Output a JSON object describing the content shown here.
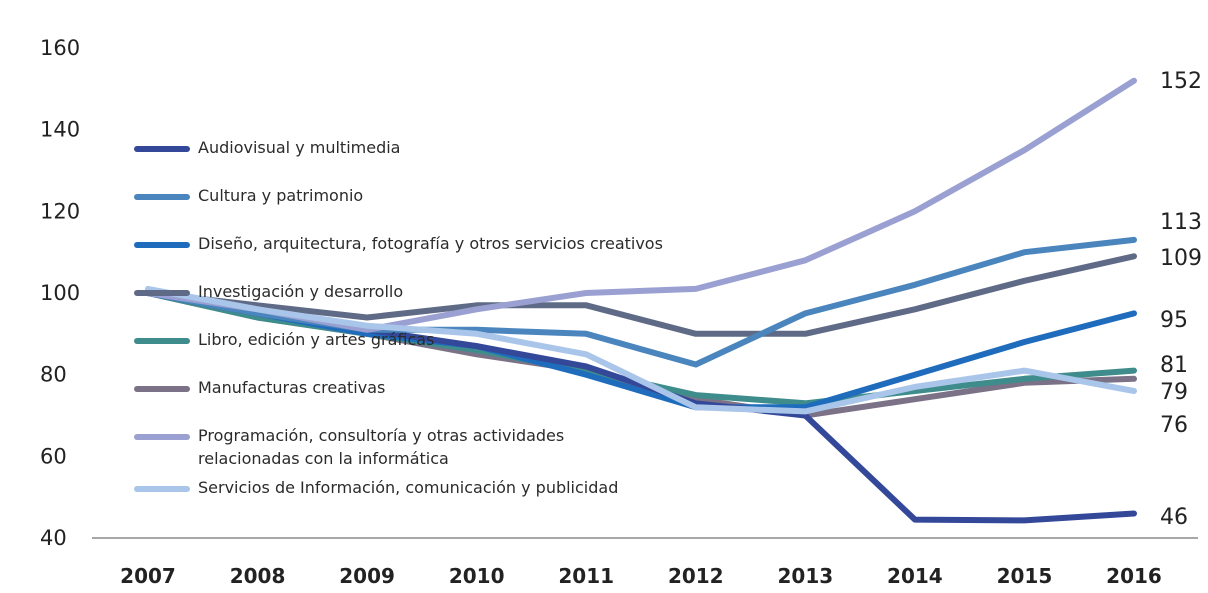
{
  "chart_data": {
    "type": "line",
    "x": [
      "2007",
      "2008",
      "2009",
      "2010",
      "2011",
      "2012",
      "2013",
      "2014",
      "2015",
      "2016"
    ],
    "ylim": [
      40,
      160
    ],
    "yticks": [
      "40",
      "60",
      "80",
      "100",
      "120",
      "140",
      "160"
    ],
    "grid": false,
    "legend_position": "left",
    "series": [
      {
        "name": "Audiovisual y multimedia",
        "color": "#34489a",
        "values": [
          100,
          95,
          91,
          87,
          82,
          73,
          70,
          44.5,
          44.3,
          46
        ],
        "end_label": "46"
      },
      {
        "name": "Cultura y patrimonio",
        "color": "#4a86bd",
        "values": [
          100,
          95,
          91,
          91,
          90,
          82.5,
          95,
          102,
          110,
          113
        ],
        "end_label": "113"
      },
      {
        "name": "Diseño, arquitectura, fotografía y otros servicios creativos",
        "color": "#1f6cbd",
        "values": [
          100,
          95,
          90,
          87,
          80,
          72,
          72,
          80,
          88,
          95
        ],
        "end_label": "95"
      },
      {
        "name": "Investigación y desarrollo",
        "color": "#5f6b86",
        "values": [
          100,
          97,
          94,
          97,
          97,
          90,
          90,
          96,
          103,
          109
        ],
        "end_label": "109"
      },
      {
        "name": "Libro, edición y artes gráficas",
        "color": "#3f8c8c",
        "values": [
          100,
          94,
          90,
          86,
          81,
          75,
          73,
          76,
          79,
          81
        ],
        "end_label": "81"
      },
      {
        "name": "Manufacturas creativas",
        "color": "#7b7287",
        "values": [
          100,
          94,
          90,
          85,
          81,
          74,
          70,
          74,
          78,
          79
        ],
        "end_label": "79"
      },
      {
        "name": "Programación, consultoría y otras actividades relacionadas con la informática",
        "color": "#9aa1d2",
        "values": [
          100,
          96,
          91,
          96,
          100,
          101,
          108,
          120,
          135,
          152
        ],
        "end_label": "152"
      },
      {
        "name": "Servicios de Información, comunicación y publicidad",
        "color": "#a9c6ea",
        "values": [
          101,
          96,
          92,
          90,
          85,
          72,
          71,
          77,
          81,
          76
        ],
        "end_label": "76"
      }
    ]
  }
}
